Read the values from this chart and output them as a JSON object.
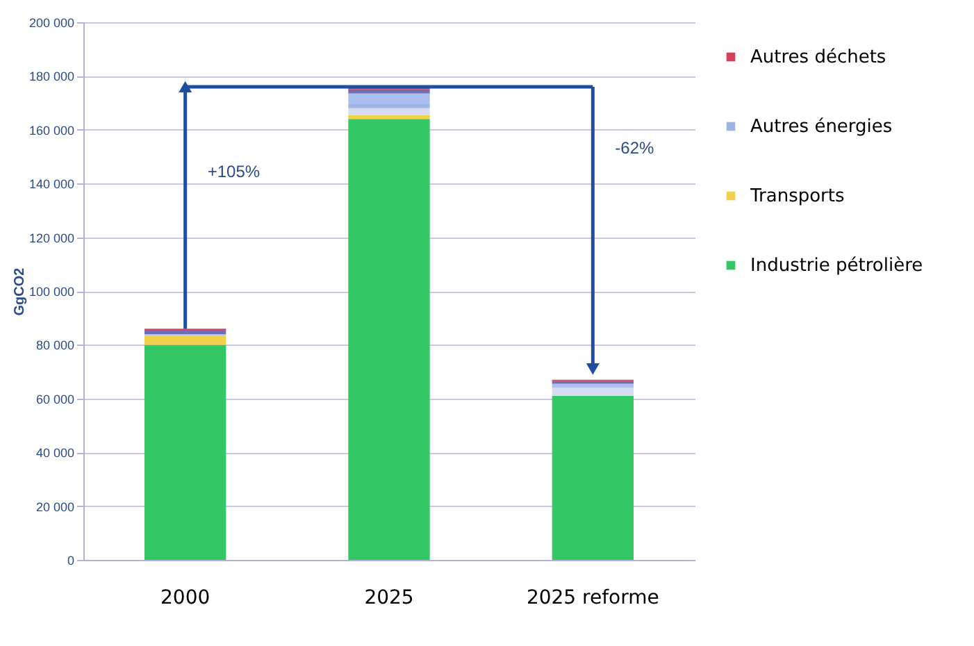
{
  "chart_data": {
    "type": "bar",
    "stacked": true,
    "ylabel": "GgCO2",
    "categories": [
      "2000",
      "2025",
      "2025 reforme"
    ],
    "series": [
      {
        "name": "Industrie pétrolière",
        "color": "#33c765",
        "values": [
          80000,
          164000,
          61000
        ]
      },
      {
        "name": "Transports",
        "color": "#f2d14a",
        "values": [
          3500,
          1500,
          0
        ]
      },
      {
        "color": "#d6dcf2",
        "values": [
          0,
          2500,
          3000
        ]
      },
      {
        "name": "Autres énergies",
        "color": "#9fb3e4",
        "values": [
          0,
          1500,
          0
        ]
      },
      {
        "color": "#aac0f0",
        "values": [
          500,
          4000,
          1500
        ]
      },
      {
        "color": "#6f6fb8",
        "values": [
          1500,
          1500,
          1000
        ]
      },
      {
        "name": "Autres déchets",
        "color": "#d8405a",
        "values": [
          500,
          1000,
          500
        ]
      }
    ],
    "ylim": [
      0,
      200000
    ],
    "yticks": [
      {
        "value": 0,
        "label": "0"
      },
      {
        "value": 20000,
        "label": "20 000"
      },
      {
        "value": 40000,
        "label": "40 000"
      },
      {
        "value": 60000,
        "label": "60 000"
      },
      {
        "value": 80000,
        "label": "80 000"
      },
      {
        "value": 100000,
        "label": "100 000"
      },
      {
        "value": 120000,
        "label": "120 000"
      },
      {
        "value": 140000,
        "label": "140 000"
      },
      {
        "value": 160000,
        "label": "160 000"
      },
      {
        "value": 180000,
        "label": "180 000"
      },
      {
        "value": 200000,
        "label": "200 000"
      }
    ],
    "grid": "y",
    "legend": "right",
    "annotations": [
      "+105%",
      "-62%"
    ]
  }
}
